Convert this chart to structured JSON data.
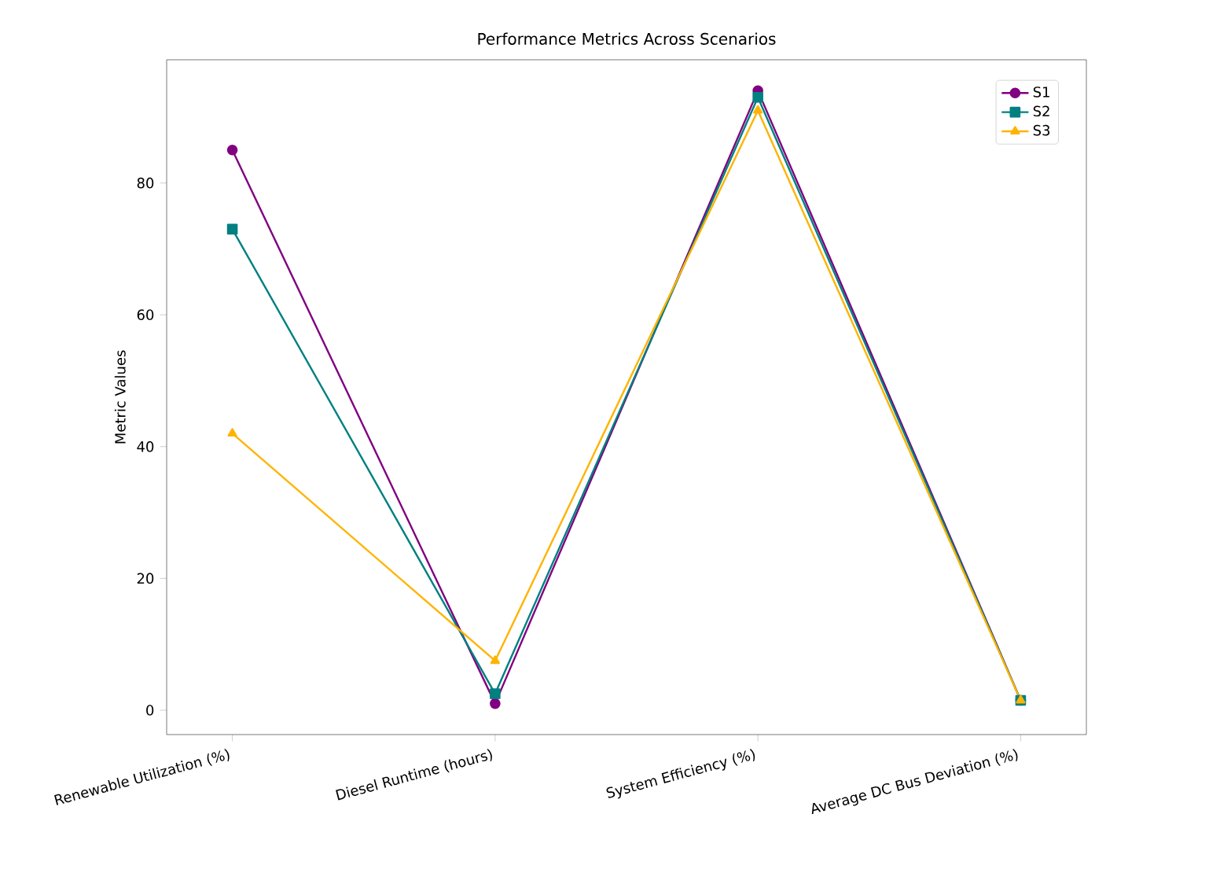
{
  "chart_data": {
    "type": "line",
    "title": "Performance Metrics Across Scenarios",
    "ylabel": "Metric Values",
    "categories": [
      "Renewable Utilization (%)",
      "Diesel Runtime (hours)",
      "System Efficiency (%)",
      "Average DC Bus Deviation (%)"
    ],
    "series": [
      {
        "name": "S1",
        "color": "#800080",
        "marker": "circle",
        "values": [
          85,
          1,
          94,
          1.5
        ]
      },
      {
        "name": "S2",
        "color": "#008080",
        "marker": "square",
        "values": [
          73,
          2.5,
          93,
          1.5
        ]
      },
      {
        "name": "S3",
        "color": "#ffb300",
        "marker": "triangle",
        "values": [
          42,
          7.5,
          91,
          1.5
        ]
      }
    ],
    "ylim": [
      -3.7,
      98.7
    ],
    "yticks": [
      0,
      20,
      40,
      60,
      80
    ],
    "legend": "top right",
    "grid": false
  }
}
